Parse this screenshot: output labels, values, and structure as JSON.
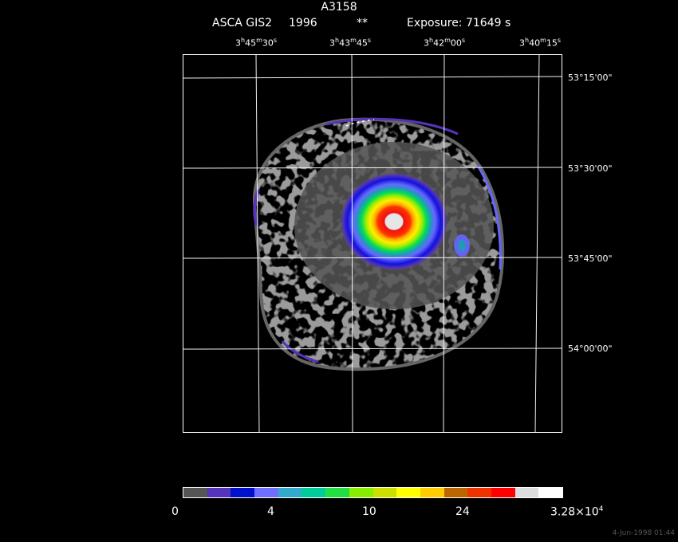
{
  "header": {
    "title": "A3158",
    "instrument": "ASCA GIS2",
    "year": "1996",
    "marker": "**",
    "exposure": "Exposure: 71649 s"
  },
  "ra_axis": {
    "ticks": [
      {
        "h": "3",
        "m": "45",
        "s": "30"
      },
      {
        "h": "3",
        "m": "43",
        "s": "45"
      },
      {
        "h": "3",
        "m": "42",
        "s": "00"
      },
      {
        "h": "3",
        "m": "40",
        "s": "15"
      }
    ]
  },
  "dec_axis": {
    "ticks": [
      "53°15'00\"",
      "53°30'00\"",
      "53°45'00\"",
      "54°00'00\""
    ]
  },
  "colorbar": {
    "labels": [
      "0",
      "4",
      "10",
      "24",
      "3.28×10"
    ],
    "label_exp": "4",
    "colors": [
      "#555555",
      "#5533bb",
      "#0011cc",
      "#6f6fff",
      "#33aacc",
      "#00cc99",
      "#22dd44",
      "#88ee00",
      "#cce000",
      "#ffff00",
      "#ffcc00",
      "#bb6600",
      "#ee3300",
      "#ff0000",
      "#dddddd",
      "#ffffff"
    ]
  },
  "footer": "4-Jun-1998 01:44",
  "image_colors": {
    "background": "#000000",
    "gray": "#555555",
    "purple": "#5533bb",
    "blue": "#1111dd",
    "lightblue": "#6666ff",
    "teal": "#2299bb",
    "green": "#00dd55",
    "yellowgreen": "#99ee00",
    "yellow": "#ffee00",
    "orange": "#ff8800",
    "red": "#ee1111",
    "white": "#e6e6e6",
    "grid": "#ffffff"
  }
}
